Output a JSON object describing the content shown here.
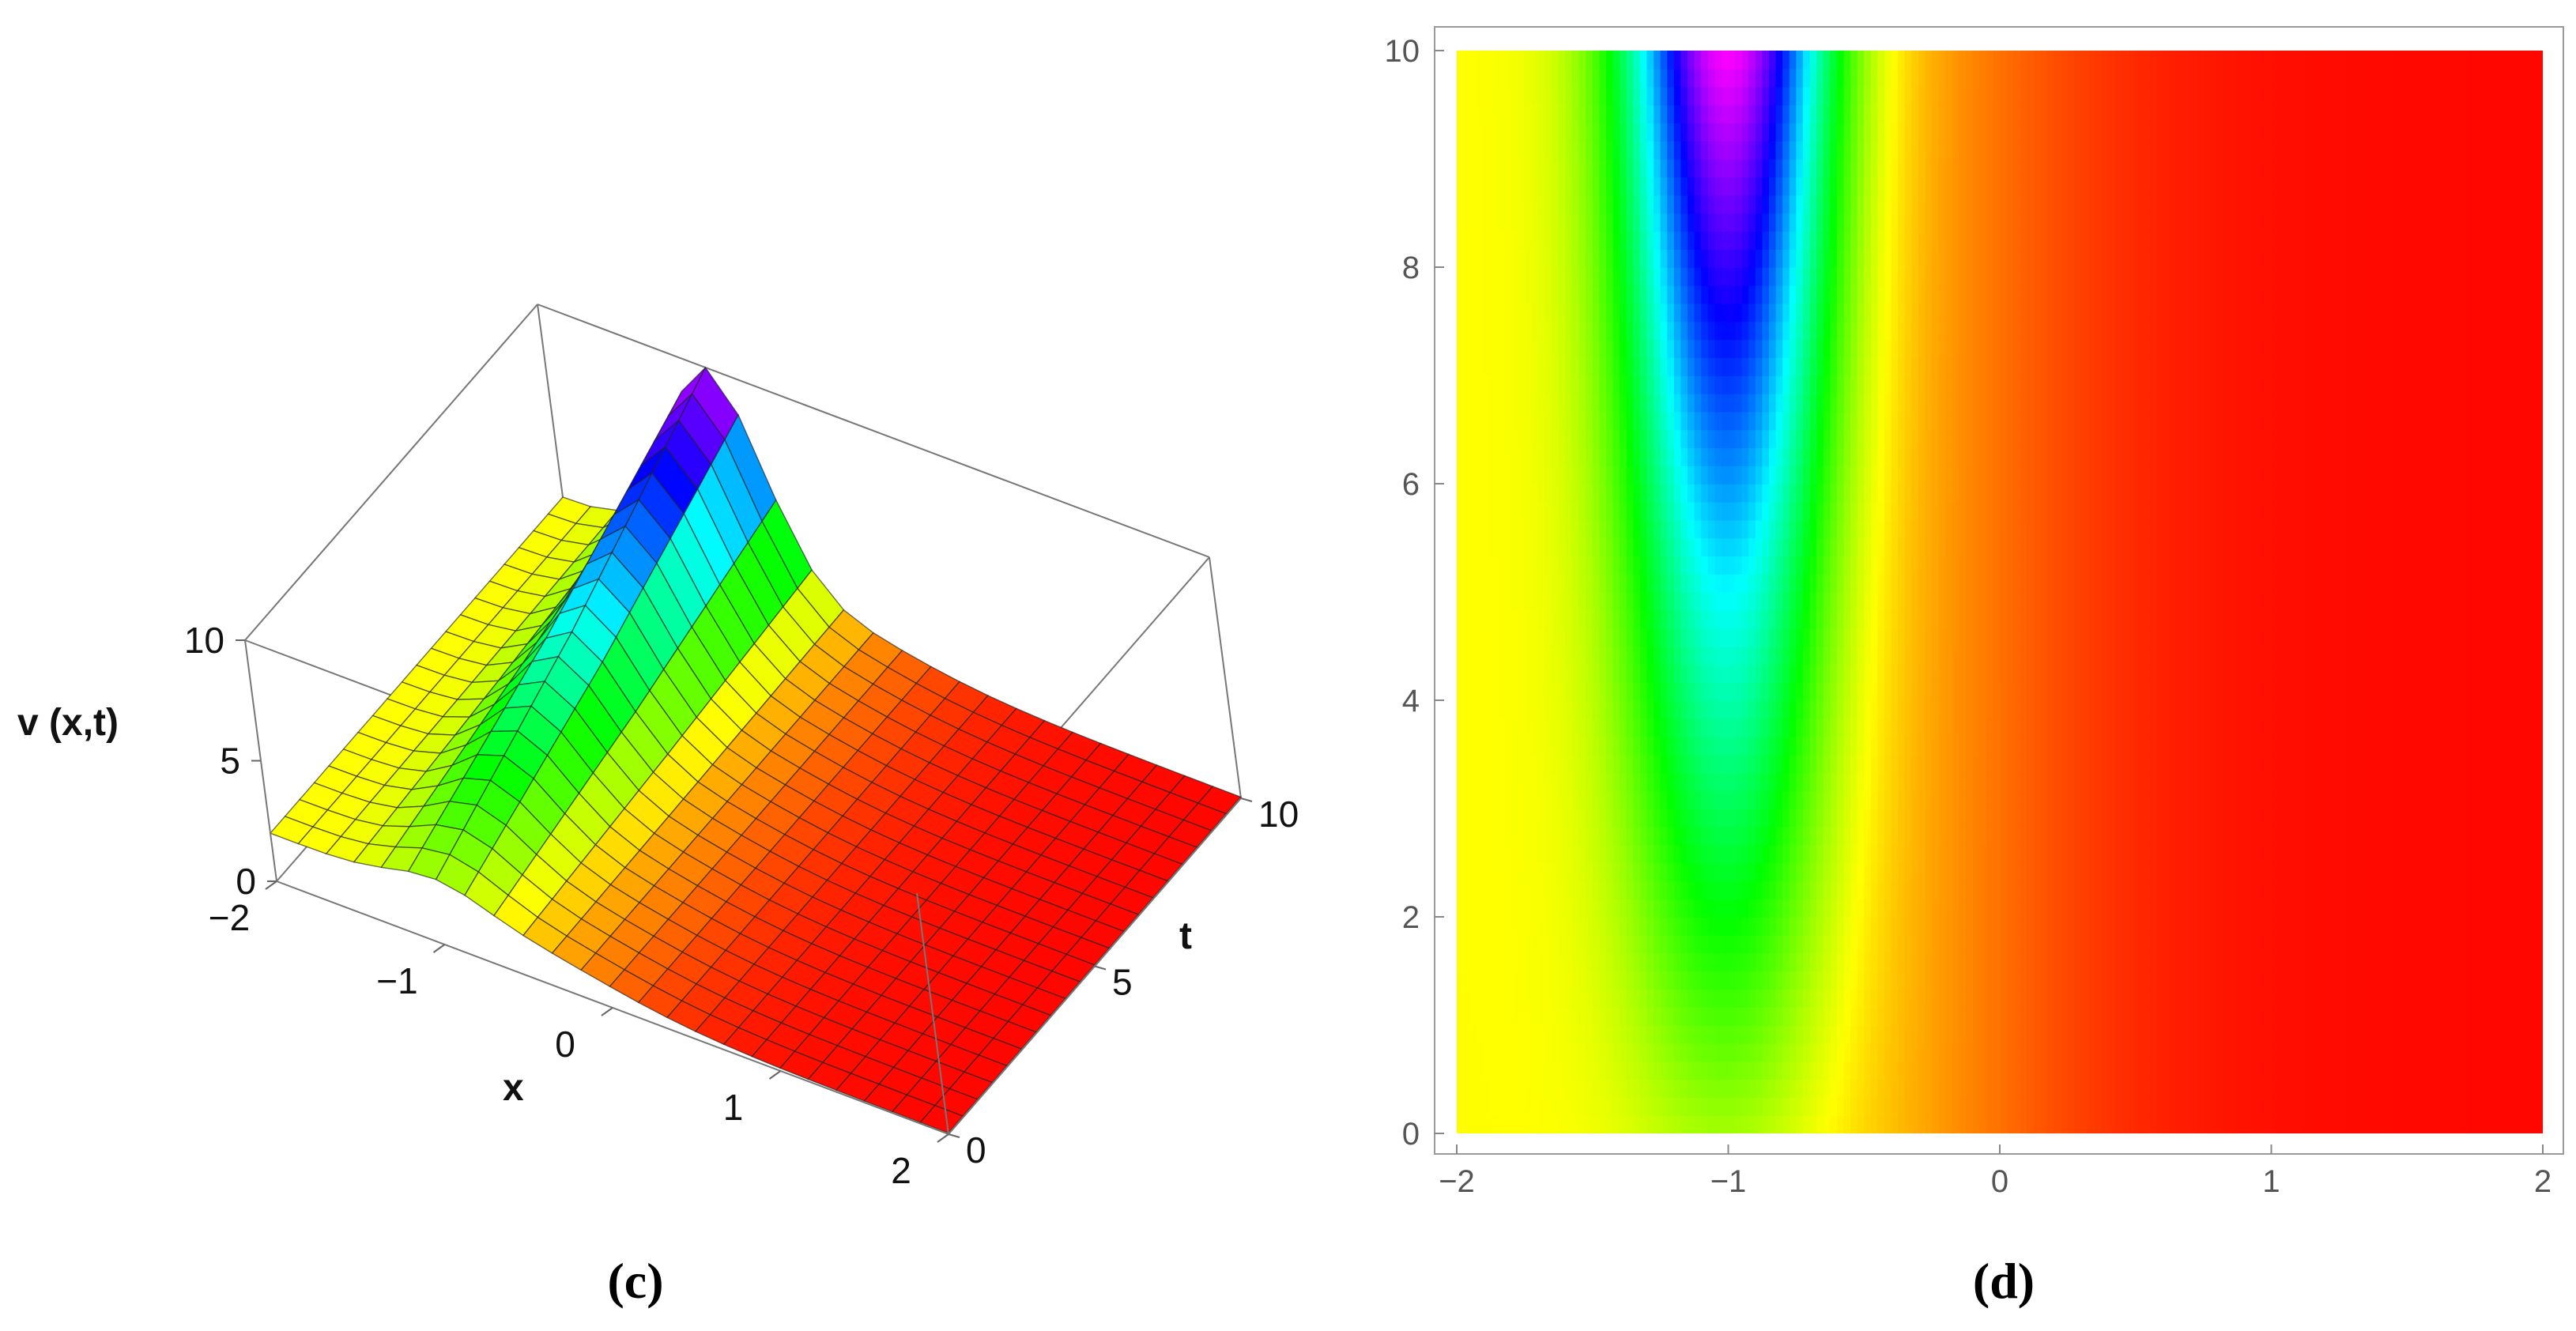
{
  "chart_data": [
    {
      "type": "surface3d",
      "caption": "(c)",
      "zlabel": "v (x,t)",
      "xlabel": "x",
      "ylabel": "t",
      "xlim": [
        -2,
        2
      ],
      "ylim": [
        0,
        10
      ],
      "zlim": [
        0,
        10
      ],
      "x_ticks": [
        "−2",
        "−1",
        "0",
        "1",
        "2"
      ],
      "t_ticks": [
        "0",
        "5",
        "10"
      ],
      "z_ticks": [
        "0",
        "5",
        "10"
      ],
      "peak_x": -1,
      "peak_height_at_t": [
        {
          "t": 0,
          "v": 2.7
        },
        {
          "t": 5,
          "v": 6.0
        },
        {
          "t": 10,
          "v": 10.0
        }
      ],
      "grid": true,
      "colormap": "hue (red low → yellow → green → cyan → blue → magenta high)"
    },
    {
      "type": "heatmap",
      "caption": "(d)",
      "xlim": [
        -2,
        2
      ],
      "ylim": [
        0,
        10
      ],
      "x_ticks": [
        "−2",
        "−1",
        "0",
        "1",
        "2"
      ],
      "y_ticks": [
        "0",
        "2",
        "4",
        "6",
        "8",
        "10"
      ],
      "peak_x": -1,
      "colormap": "hue (red low → yellow → green → cyan → blue → magenta high)"
    }
  ]
}
